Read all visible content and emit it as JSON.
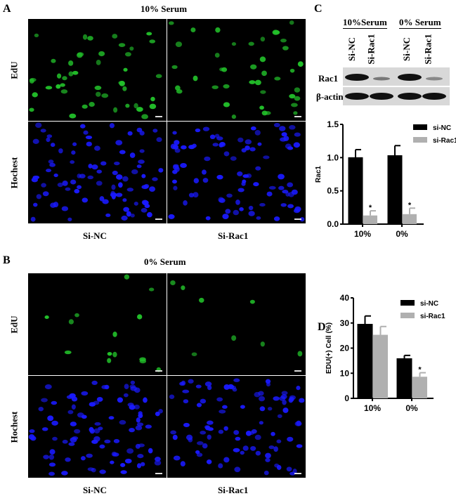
{
  "panelA": {
    "label": "A",
    "title": "10% Serum",
    "rows": [
      "EdU",
      "Hochest"
    ],
    "cols": [
      "Si-NC",
      "Si-Rac1"
    ]
  },
  "panelB": {
    "label": "B",
    "title": "0% Serum",
    "rows": [
      "EdU",
      "Hochest"
    ],
    "cols": [
      "Si-NC",
      "Si-Rac1"
    ]
  },
  "panelC": {
    "label": "C",
    "groups": [
      "10%Serum",
      "0% Serum"
    ],
    "lanes": [
      "Si-NC",
      "Si-Rac1",
      "Si-NC",
      "Si-Rac1"
    ],
    "bands": [
      "Rac1",
      "β-actin"
    ]
  },
  "panelD": {
    "label": "D"
  },
  "colors": {
    "edu": "#22c02a",
    "hoechst": "#1a1aff",
    "si_nc": "#000000",
    "si_rac1": "#b0b0b0"
  },
  "chart_data": [
    {
      "type": "bar",
      "panel": "C",
      "categories": [
        "10%",
        "0%"
      ],
      "ylabel": "Rac1",
      "ylim": [
        0,
        1.5
      ],
      "yticks": [
        "0.0",
        "0.5",
        "1.0",
        "1.5"
      ],
      "legend": "top-right",
      "series": [
        {
          "name": "si-NC",
          "values": [
            1.0,
            1.03
          ],
          "errors": [
            0.12,
            0.15
          ]
        },
        {
          "name": "si-Rac1",
          "values": [
            0.13,
            0.15
          ],
          "errors": [
            0.07,
            0.09
          ],
          "annotations": [
            "*",
            "*"
          ]
        }
      ]
    },
    {
      "type": "bar",
      "panel": "D",
      "categories": [
        "10%",
        "0%"
      ],
      "ylabel": "EDU(+) Cell (%)",
      "ylim": [
        0,
        40
      ],
      "yticks": [
        "0",
        "10",
        "20",
        "30",
        "40"
      ],
      "legend": "top-right",
      "series": [
        {
          "name": "si-NC",
          "values": [
            29.5,
            15.8
          ],
          "errors": [
            3.3,
            1.3
          ]
        },
        {
          "name": "si-Rac1",
          "values": [
            25.3,
            8.6
          ],
          "errors": [
            3.3,
            1.6
          ],
          "annotations": [
            "",
            "*"
          ]
        }
      ]
    }
  ]
}
